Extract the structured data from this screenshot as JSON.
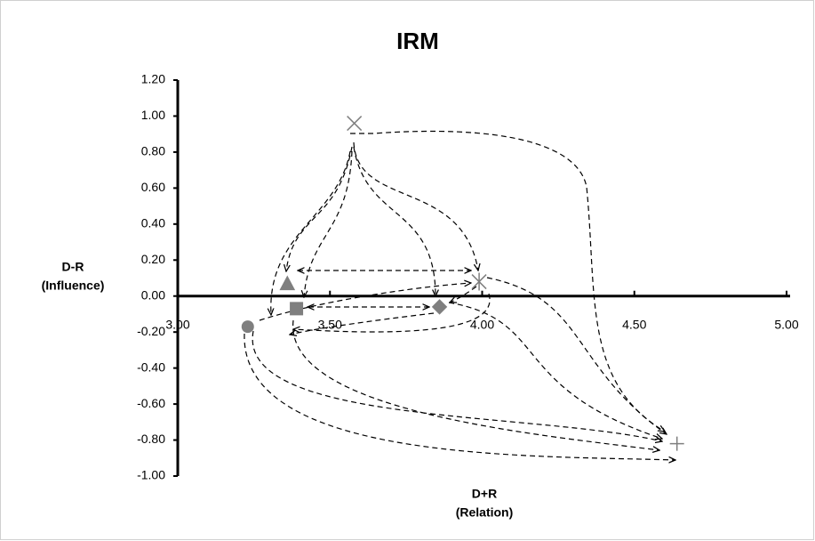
{
  "chart_data": {
    "type": "scatter",
    "title": "IRM",
    "xlabel": [
      "D+R",
      "(Relation)"
    ],
    "ylabel": [
      "D-R",
      "(Influence)"
    ],
    "x": [
      3.58,
      3.36,
      3.99,
      3.86,
      3.39,
      3.23,
      4.64
    ],
    "y": [
      0.96,
      0.07,
      0.08,
      -0.06,
      -0.07,
      -0.17,
      -0.82
    ],
    "markers": [
      "x",
      "triangle",
      "asterisk",
      "diamond",
      "square",
      "circle",
      "plus"
    ],
    "color": "#7f7f7f",
    "xlim": [
      3.0,
      5.0
    ],
    "xticks": [
      {
        "value": 3.0,
        "label": "3.00"
      },
      {
        "value": 3.5,
        "label": "3.50"
      },
      {
        "value": 4.0,
        "label": "4.00"
      },
      {
        "value": 4.5,
        "label": "4.50"
      },
      {
        "value": 5.0,
        "label": "5.00"
      }
    ],
    "ylim": [
      -1.0,
      1.2
    ],
    "yticks": [
      {
        "value": 1.2,
        "label": "1.20"
      },
      {
        "value": 1.0,
        "label": "1.00"
      },
      {
        "value": 0.8,
        "label": "0.80"
      },
      {
        "value": 0.6,
        "label": "0.60"
      },
      {
        "value": 0.4,
        "label": "0.40"
      },
      {
        "value": 0.2,
        "label": "0.20"
      },
      {
        "value": 0,
        "label": "0.00"
      },
      {
        "value": -0.2,
        "label": "-0.20"
      },
      {
        "value": -0.4,
        "label": "-0.40"
      },
      {
        "value": -0.6,
        "label": "-0.60"
      },
      {
        "value": -0.8,
        "label": "-0.80"
      },
      {
        "value": -1.0,
        "label": "-1.00"
      }
    ]
  }
}
